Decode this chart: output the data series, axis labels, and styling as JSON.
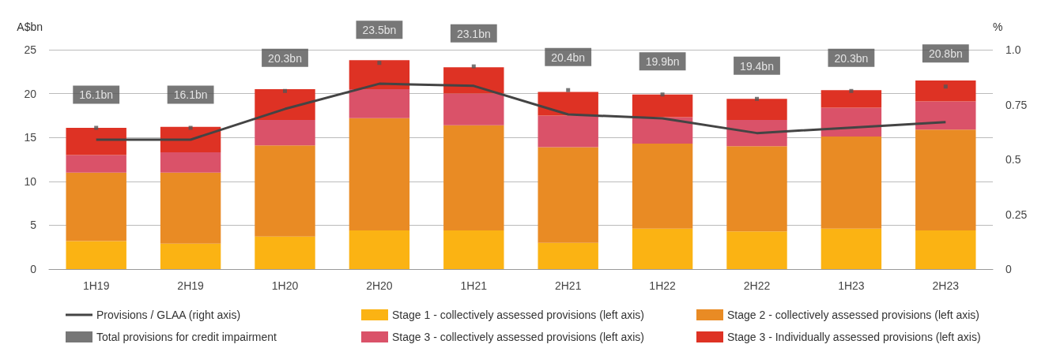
{
  "chart_data": {
    "type": "bar",
    "stacked": true,
    "xlabel": null,
    "ylabel": "A$bn",
    "y2label": "%",
    "categories": [
      "1H19",
      "2H19",
      "1H20",
      "2H20",
      "1H21",
      "2H21",
      "1H22",
      "2H22",
      "1H23",
      "2H23"
    ],
    "series": [
      {
        "name": "Stage 1 - collectively assessed provisions (left axis)",
        "color": "#fbb313",
        "values": [
          3.2,
          2.9,
          3.7,
          4.4,
          4.4,
          3.0,
          4.6,
          4.3,
          4.6,
          4.4
        ]
      },
      {
        "name": "Stage 2 - collectively assessed provisions (left axis)",
        "color": "#e98b24",
        "values": [
          7.8,
          8.1,
          10.4,
          12.8,
          12.0,
          10.9,
          9.7,
          9.7,
          10.5,
          11.5
        ]
      },
      {
        "name": "Stage 3 - collectively assessed provisions (left axis)",
        "color": "#da5269",
        "values": [
          2.0,
          2.3,
          2.9,
          3.3,
          3.6,
          3.6,
          3.0,
          3.0,
          3.3,
          3.2
        ]
      },
      {
        "name": "Stage 3 - Individually assessed provisions (left axis)",
        "color": "#de3224",
        "values": [
          3.1,
          2.9,
          3.5,
          3.3,
          3.0,
          2.7,
          2.6,
          2.4,
          2.0,
          2.4
        ]
      },
      {
        "name": "Provisions / GLAA (right axis)",
        "type": "line",
        "axis": "y2",
        "color": "#444444",
        "marker": "none",
        "values": [
          0.59,
          0.59,
          0.73,
          0.845,
          0.835,
          0.705,
          0.687,
          0.62,
          0.645,
          0.67
        ]
      },
      {
        "name": "Total provisions for credit impairment",
        "type": "scatter",
        "color": "#555555",
        "marker": "square",
        "values": [
          16.1,
          16.1,
          20.3,
          23.5,
          23.1,
          20.4,
          19.9,
          19.4,
          20.3,
          20.8
        ],
        "value_labels": [
          "16.1bn",
          "16.1bn",
          "20.3bn",
          "23.5bn",
          "23.1bn",
          "20.4bn",
          "19.9bn",
          "19.4bn",
          "20.3bn",
          "20.8bn"
        ]
      }
    ],
    "ylim": [
      0,
      25
    ],
    "yticks": [
      0,
      5,
      10,
      15,
      20,
      25
    ],
    "y2lim": [
      0,
      1
    ],
    "y2ticks": [
      0,
      0.25,
      0.5,
      0.75,
      {
        "value": 1,
        "label": "1.0"
      }
    ],
    "grid": "y",
    "legend": "bottom"
  }
}
